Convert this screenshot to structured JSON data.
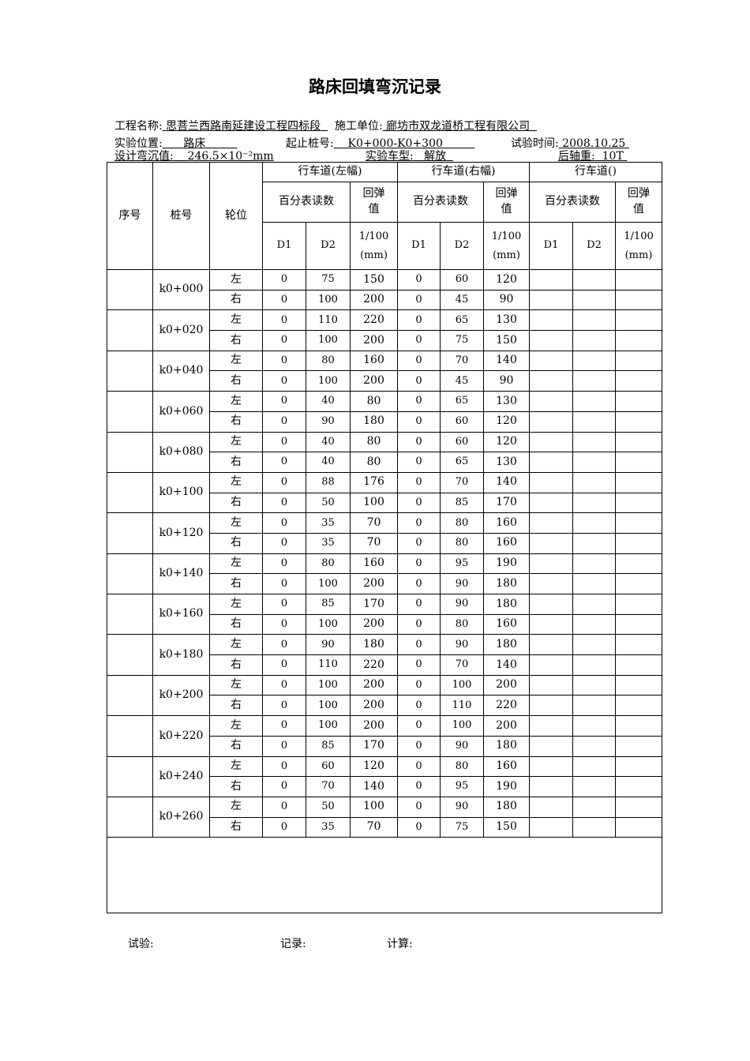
{
  "title": "路床回填弯沉记录",
  "meta": {
    "project_label": "工程名称:",
    "project_value": "思菩兰西路南延建设工程四标段",
    "contractor_label": "施工单位:",
    "contractor_value": "廊坊市双龙道桥工程有限公司",
    "location_label": "实验位置:",
    "location_value": "路床",
    "station_label": "起止桩号:",
    "station_value": "K0+000-K0+300",
    "date_label": "试验时间:",
    "date_value": "2008.10.25",
    "design_label": "设计弯沉值:",
    "design_value": "246.5×10⁻²mm",
    "vehicle_label": "实验车型:",
    "vehicle_value": "解放",
    "axle_label": "后轴重:",
    "axle_value": "10T"
  },
  "header": {
    "seq": "序号",
    "station": "桩号",
    "wheel": "轮位",
    "lanes": [
      "行车道(左幅)",
      "行车道(右幅)",
      "行车道()"
    ],
    "dial": "百分表读数",
    "rebound": "回弹值",
    "d1": "D1",
    "d2": "D2",
    "unit": "1/100 (mm)"
  },
  "wheels": [
    "左",
    "右"
  ],
  "rows": [
    {
      "station": "k0+000",
      "left": [
        "0",
        "75",
        "150",
        "0",
        "60",
        "120"
      ],
      "right": [
        "0",
        "100",
        "200",
        "0",
        "45",
        "90"
      ]
    },
    {
      "station": "k0+020",
      "left": [
        "0",
        "110",
        "220",
        "0",
        "65",
        "130"
      ],
      "right": [
        "0",
        "100",
        "200",
        "0",
        "75",
        "150"
      ]
    },
    {
      "station": "k0+040",
      "left": [
        "0",
        "80",
        "160",
        "0",
        "70",
        "140"
      ],
      "right": [
        "0",
        "100",
        "200",
        "0",
        "45",
        "90"
      ]
    },
    {
      "station": "k0+060",
      "left": [
        "0",
        "40",
        "80",
        "0",
        "65",
        "130"
      ],
      "right": [
        "0",
        "90",
        "180",
        "0",
        "60",
        "120"
      ]
    },
    {
      "station": "k0+080",
      "left": [
        "0",
        "40",
        "80",
        "0",
        "60",
        "120"
      ],
      "right": [
        "0",
        "40",
        "80",
        "0",
        "65",
        "130"
      ]
    },
    {
      "station": "k0+100",
      "left": [
        "0",
        "88",
        "176",
        "0",
        "70",
        "140"
      ],
      "right": [
        "0",
        "50",
        "100",
        "0",
        "85",
        "170"
      ]
    },
    {
      "station": "k0+120",
      "left": [
        "0",
        "35",
        "70",
        "0",
        "80",
        "160"
      ],
      "right": [
        "0",
        "35",
        "70",
        "0",
        "80",
        "160"
      ]
    },
    {
      "station": "k0+140",
      "left": [
        "0",
        "80",
        "160",
        "0",
        "95",
        "190"
      ],
      "right": [
        "0",
        "100",
        "200",
        "0",
        "90",
        "180"
      ]
    },
    {
      "station": "k0+160",
      "left": [
        "0",
        "85",
        "170",
        "0",
        "90",
        "180"
      ],
      "right": [
        "0",
        "100",
        "200",
        "0",
        "80",
        "160"
      ]
    },
    {
      "station": "k0+180",
      "left": [
        "0",
        "90",
        "180",
        "0",
        "90",
        "180"
      ],
      "right": [
        "0",
        "110",
        "220",
        "0",
        "70",
        "140"
      ]
    },
    {
      "station": "k0+200",
      "left": [
        "0",
        "100",
        "200",
        "0",
        "100",
        "200"
      ],
      "right": [
        "0",
        "100",
        "200",
        "0",
        "110",
        "220"
      ]
    },
    {
      "station": "k0+220",
      "left": [
        "0",
        "100",
        "200",
        "0",
        "100",
        "200"
      ],
      "right": [
        "0",
        "85",
        "170",
        "0",
        "90",
        "180"
      ]
    },
    {
      "station": "k0+240",
      "left": [
        "0",
        "60",
        "120",
        "0",
        "80",
        "160"
      ],
      "right": [
        "0",
        "70",
        "140",
        "0",
        "95",
        "190"
      ]
    },
    {
      "station": "k0+260",
      "left": [
        "0",
        "50",
        "100",
        "0",
        "90",
        "180"
      ],
      "right": [
        "0",
        "35",
        "70",
        "0",
        "75",
        "150"
      ]
    }
  ],
  "footer": {
    "test": "试验:",
    "record": "记录:",
    "calc": "计算:"
  }
}
